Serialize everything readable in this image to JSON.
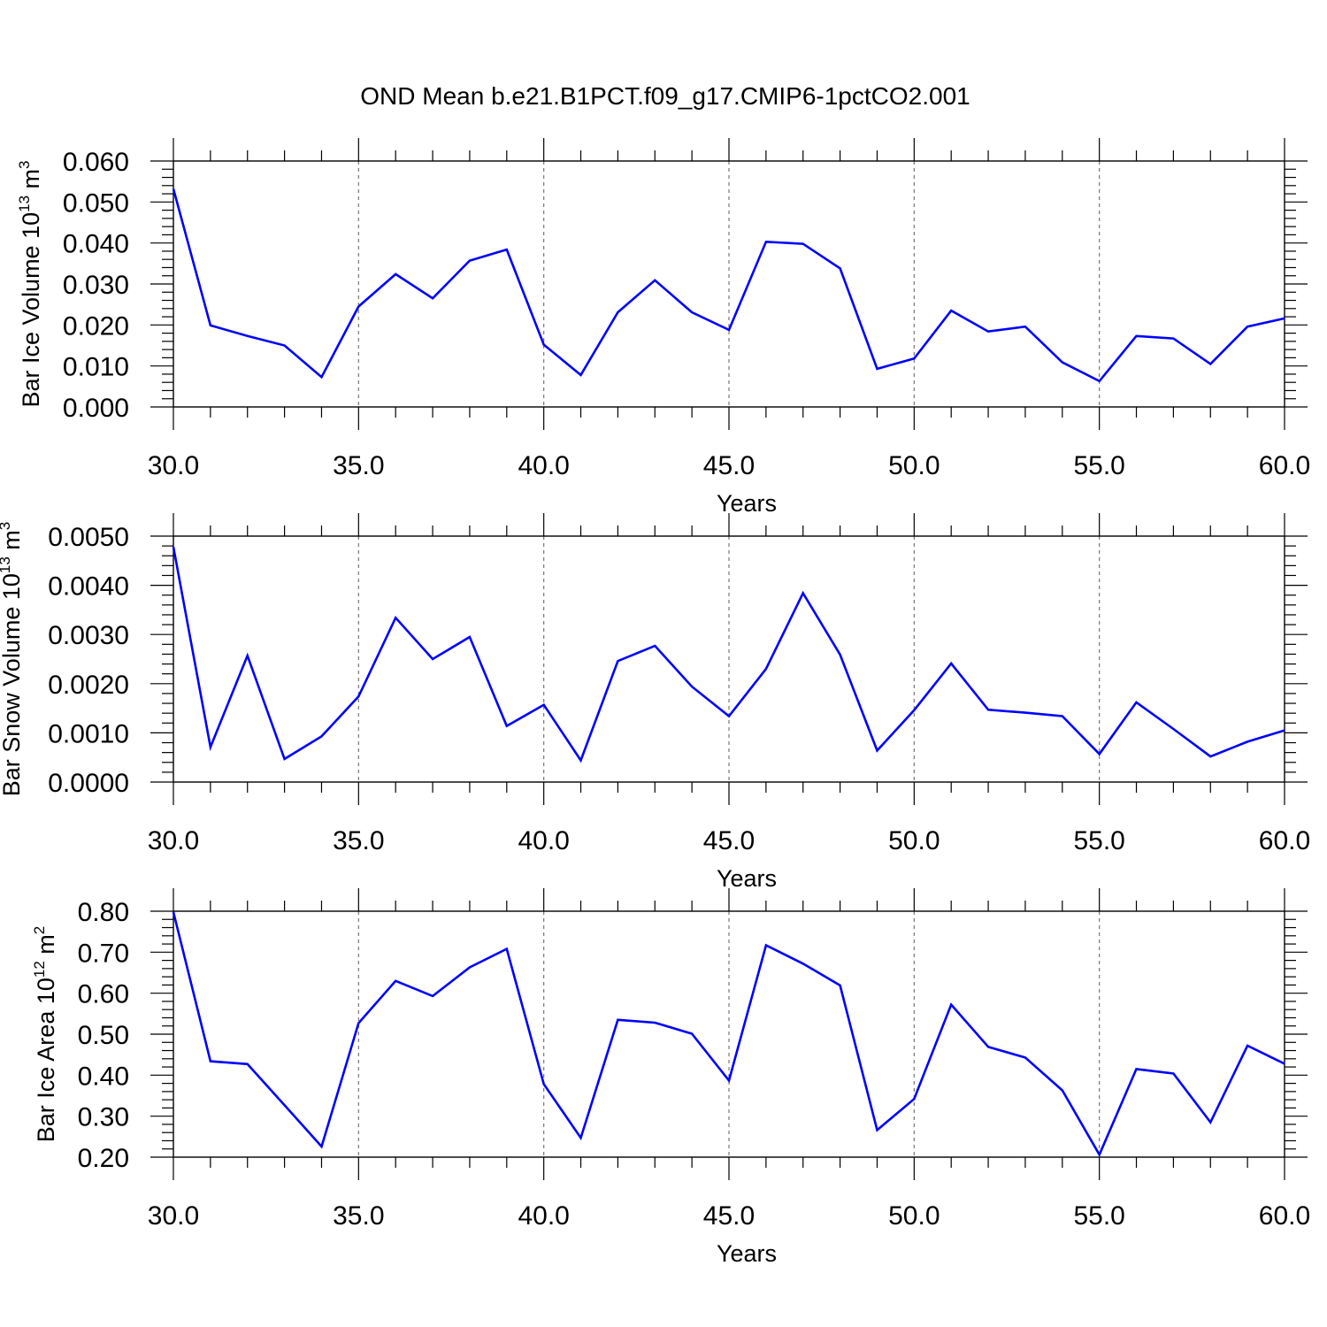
{
  "figure": {
    "title": "OND Mean b.e21.B1PCT.f09_g17.CMIP6-1pctCO2.001"
  },
  "chart_data": [
    {
      "type": "line",
      "title": "OND Mean b.e21.B1PCT.f09_g17.CMIP6-1pctCO2.001",
      "xlabel": "Years",
      "ylabel": "Bar Ice Volume 10",
      "ylabel_exp": "13",
      "ylabel_unit": " m",
      "ylabel_unit_exp": "3",
      "xlim": [
        30,
        60
      ],
      "ylim": [
        0,
        0.06
      ],
      "xticks": [
        "30.0",
        "35.0",
        "40.0",
        "45.0",
        "50.0",
        "55.0",
        "60.0"
      ],
      "yticks": [
        "0.000",
        "0.010",
        "0.020",
        "0.030",
        "0.040",
        "0.050",
        "0.060"
      ],
      "series_color": "#0000ff",
      "x": [
        30,
        31,
        32,
        33,
        34,
        35,
        36,
        37,
        38,
        39,
        40,
        41,
        42,
        43,
        44,
        45,
        46,
        47,
        48,
        49,
        50,
        51,
        52,
        53,
        54,
        55,
        56,
        57,
        58,
        59,
        60
      ],
      "values": [
        0.0532,
        0.0199,
        0.0173,
        0.015,
        0.0073,
        0.0245,
        0.0324,
        0.0265,
        0.0357,
        0.0384,
        0.0152,
        0.0078,
        0.0231,
        0.0309,
        0.0231,
        0.0188,
        0.0403,
        0.0398,
        0.0338,
        0.0093,
        0.0118,
        0.0235,
        0.0184,
        0.0196,
        0.0109,
        0.0063,
        0.0173,
        0.0167,
        0.0105,
        0.0196,
        0.0216
      ]
    },
    {
      "type": "line",
      "xlabel": "Years",
      "ylabel": "Bar Snow Volume 10",
      "ylabel_exp": "13",
      "ylabel_unit": " m",
      "ylabel_unit_exp": "3",
      "xlim": [
        30,
        60
      ],
      "ylim": [
        0,
        0.005
      ],
      "xticks": [
        "30.0",
        "35.0",
        "40.0",
        "45.0",
        "50.0",
        "55.0",
        "60.0"
      ],
      "yticks": [
        "0.0000",
        "0.0010",
        "0.0020",
        "0.0030",
        "0.0040",
        "0.0050"
      ],
      "series_color": "#0000ff",
      "x": [
        30,
        31,
        32,
        33,
        34,
        35,
        36,
        37,
        38,
        39,
        40,
        41,
        42,
        43,
        44,
        45,
        46,
        47,
        48,
        49,
        50,
        51,
        52,
        53,
        54,
        55,
        56,
        57,
        58,
        59,
        60
      ],
      "values": [
        0.00478,
        0.00071,
        0.00257,
        0.00047,
        0.00093,
        0.00174,
        0.00334,
        0.0025,
        0.00295,
        0.00114,
        0.00157,
        0.00044,
        0.00246,
        0.00277,
        0.00194,
        0.00134,
        0.0023,
        0.00384,
        0.00259,
        0.00064,
        0.00146,
        0.00241,
        0.00147,
        0.00141,
        0.00134,
        0.00057,
        0.00162,
        0.00108,
        0.00052,
        0.00082,
        0.00105
      ]
    },
    {
      "type": "line",
      "xlabel": "Years",
      "ylabel": "Bar Ice Area 10",
      "ylabel_exp": "12",
      "ylabel_unit": " m",
      "ylabel_unit_exp": "2",
      "xlim": [
        30,
        60
      ],
      "ylim": [
        0.2,
        0.8
      ],
      "xticks": [
        "30.0",
        "35.0",
        "40.0",
        "45.0",
        "50.0",
        "55.0",
        "60.0"
      ],
      "yticks": [
        "0.20",
        "0.30",
        "0.40",
        "0.50",
        "0.60",
        "0.70",
        "0.80"
      ],
      "series_color": "#0000ff",
      "x": [
        30,
        31,
        32,
        33,
        34,
        35,
        36,
        37,
        38,
        39,
        40,
        41,
        42,
        43,
        44,
        45,
        46,
        47,
        48,
        49,
        50,
        51,
        52,
        53,
        54,
        55,
        56,
        57,
        58,
        59,
        60
      ],
      "values": [
        0.798,
        0.434,
        0.427,
        0.327,
        0.226,
        0.527,
        0.63,
        0.593,
        0.663,
        0.708,
        0.378,
        0.247,
        0.535,
        0.528,
        0.501,
        0.387,
        0.717,
        0.672,
        0.619,
        0.266,
        0.342,
        0.572,
        0.469,
        0.443,
        0.363,
        0.206,
        0.415,
        0.404,
        0.285,
        0.472,
        0.428
      ]
    }
  ]
}
